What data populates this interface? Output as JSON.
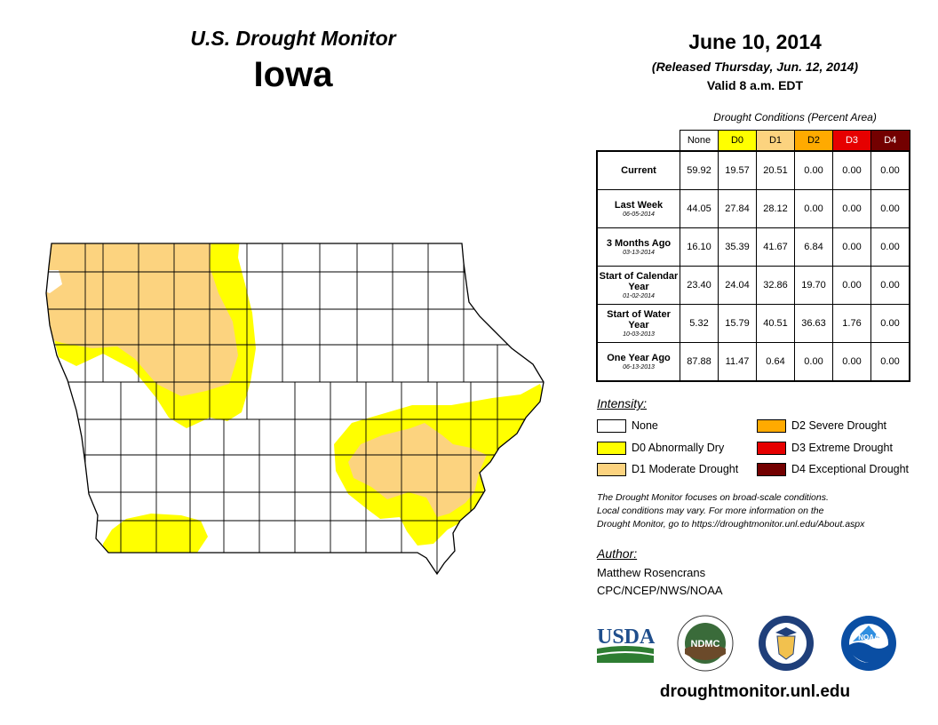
{
  "header": {
    "product_title": "U.S. Drought Monitor",
    "state": "Iowa",
    "map_date": "June 10, 2014",
    "released": "(Released Thursday, Jun. 12, 2014)",
    "valid": "Valid 8 a.m. EDT"
  },
  "conditions_table": {
    "caption": "Drought Conditions (Percent Area)",
    "columns": [
      "None",
      "D0",
      "D1",
      "D2",
      "D3",
      "D4"
    ],
    "column_colors": [
      "#ffffff",
      "#ffff00",
      "#fcd37f",
      "#ffaa00",
      "#e60000",
      "#730000"
    ],
    "rows": [
      {
        "label": "Current",
        "sub": "",
        "values": [
          "59.92",
          "19.57",
          "20.51",
          "0.00",
          "0.00",
          "0.00"
        ]
      },
      {
        "label": "Last Week",
        "sub": "06-05-2014",
        "values": [
          "44.05",
          "27.84",
          "28.12",
          "0.00",
          "0.00",
          "0.00"
        ]
      },
      {
        "label": "3 Months Ago",
        "sub": "03-13-2014",
        "values": [
          "16.10",
          "35.39",
          "41.67",
          "6.84",
          "0.00",
          "0.00"
        ]
      },
      {
        "label": "Start of Calendar Year",
        "sub": "01-02-2014",
        "values": [
          "23.40",
          "24.04",
          "32.86",
          "19.70",
          "0.00",
          "0.00"
        ]
      },
      {
        "label": "Start of Water Year",
        "sub": "10-03-2013",
        "values": [
          "5.32",
          "15.79",
          "40.51",
          "36.63",
          "1.76",
          "0.00"
        ]
      },
      {
        "label": "One Year Ago",
        "sub": "06-13-2013",
        "values": [
          "87.88",
          "11.47",
          "0.64",
          "0.00",
          "0.00",
          "0.00"
        ]
      }
    ]
  },
  "legend": {
    "title": "Intensity:",
    "items": [
      {
        "label": "None",
        "color": "#ffffff"
      },
      {
        "label": "D0 Abnormally Dry",
        "color": "#ffff00"
      },
      {
        "label": "D1 Moderate Drought",
        "color": "#fcd37f"
      },
      {
        "label": "D2 Severe Drought",
        "color": "#ffaa00"
      },
      {
        "label": "D3 Extreme Drought",
        "color": "#e60000"
      },
      {
        "label": "D4 Exceptional Drought",
        "color": "#730000"
      }
    ]
  },
  "note": {
    "line1": "The Drought Monitor focuses on broad-scale conditions.",
    "line2": "Local conditions may vary. For more information on the",
    "line3": "Drought Monitor, go to https://droughtmonitor.unl.edu/About.aspx"
  },
  "author": {
    "title": "Author:",
    "name": "Matthew Rosencrans",
    "org": "CPC/NCEP/NWS/NOAA"
  },
  "logos": {
    "usda": "USDA",
    "ndmc": "NDMC",
    "noaa": "NOAA"
  },
  "footer": {
    "website": "droughtmonitor.unl.edu"
  }
}
